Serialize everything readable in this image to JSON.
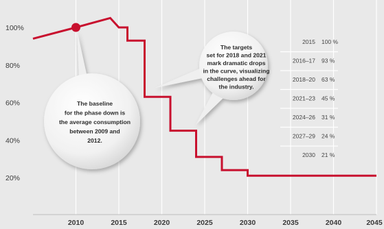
{
  "chart_data": {
    "type": "line",
    "step": true,
    "title": "",
    "xlabel": "",
    "ylabel": "",
    "xlim": [
      2005,
      2045
    ],
    "ylim": [
      10,
      110
    ],
    "x_ticks": [
      "2010",
      "2015",
      "2020",
      "2025",
      "2030",
      "2035",
      "2040",
      "2045"
    ],
    "y_ticks": [
      "20%",
      "40%",
      "60%",
      "80%",
      "100%"
    ],
    "grid": "vertical",
    "series": [
      {
        "color": "#c8102e",
        "points": [
          [
            2005,
            94
          ],
          [
            2010,
            100
          ],
          [
            2014,
            105
          ],
          [
            2015,
            100
          ],
          [
            2016,
            100
          ],
          [
            2016,
            93
          ],
          [
            2018,
            93
          ],
          [
            2018,
            63
          ],
          [
            2021,
            63
          ],
          [
            2021,
            45
          ],
          [
            2024,
            45
          ],
          [
            2024,
            31
          ],
          [
            2027,
            31
          ],
          [
            2027,
            24
          ],
          [
            2030,
            24
          ],
          [
            2030,
            21
          ],
          [
            2045,
            21
          ]
        ]
      }
    ],
    "marker": {
      "x": 2010,
      "y": 100
    },
    "table": {
      "rows": [
        {
          "period": "2015",
          "value": "100 %"
        },
        {
          "period": "2016–17",
          "value": "93 %"
        },
        {
          "period": "2018–20",
          "value": "63 %"
        },
        {
          "period": "2021–23",
          "value": "45 %"
        },
        {
          "period": "2024–26",
          "value": "31 %"
        },
        {
          "period": "2027–29",
          "value": "24 %"
        },
        {
          "period": "2030",
          "value": "21 %"
        }
      ]
    },
    "annotations": [
      {
        "name": "baseline",
        "lines": [
          "The baseline",
          "for the phase down is",
          "the average consumption",
          "between 2009 and",
          "2012."
        ]
      },
      {
        "name": "targets",
        "lines": [
          "The targets",
          "set for 2018 and 2021",
          "mark dramatic drops",
          "in the curve, visualizing",
          "challenges ahead for",
          "the industry."
        ]
      }
    ]
  }
}
